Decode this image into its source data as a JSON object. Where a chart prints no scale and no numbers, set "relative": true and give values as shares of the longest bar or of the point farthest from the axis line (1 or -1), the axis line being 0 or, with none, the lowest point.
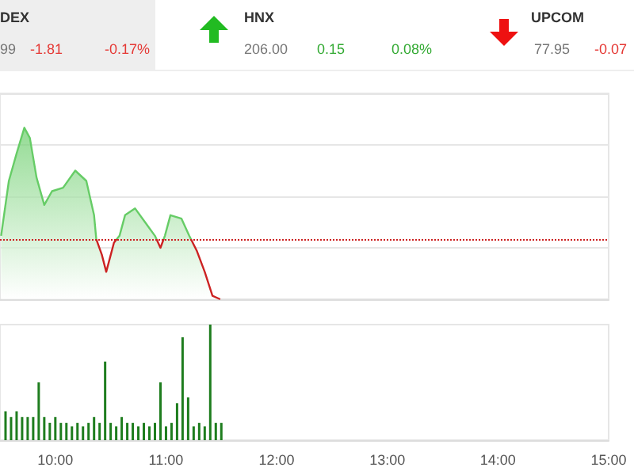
{
  "chart_data": [
    {
      "type": "other",
      "annotations": [
        "DEX",
        "99",
        "-1.81",
        "-0.17%",
        "HNX",
        "206.00",
        "0.15",
        "0.08%",
        "UPCOM",
        "77.95",
        "-0.07"
      ],
      "colors": [
        "#333333",
        "#777777",
        "#e53935",
        "#e53935",
        "#333333",
        "#777777",
        "#33aa33",
        "#33aa33",
        "#333333",
        "#777777",
        "#e53935"
      ]
    },
    {
      "type": "area",
      "relative": true,
      "xlim": [
        9.5,
        15
      ],
      "tick_labels": false,
      "grid": true,
      "x": [
        9.51,
        9.58,
        9.65,
        9.72,
        9.77,
        9.83,
        9.9,
        9.97,
        10.07,
        10.18,
        10.28,
        10.35,
        10.37,
        10.42,
        10.46,
        10.53,
        10.58,
        10.63,
        10.72,
        10.81,
        10.9,
        10.95,
        10.99,
        11.04,
        11.14,
        11.21,
        11.28,
        11.35,
        11.42,
        11.49
      ],
      "series": [
        {
          "color": "#66cc66",
          "values": [
            0.37,
            0.69,
            0.85,
            1,
            0.94,
            0.71,
            0.55,
            0.63,
            0.65,
            0.75,
            0.69,
            0.49,
            0.35,
            0.26,
            0.16,
            0.33,
            0.37,
            0.49,
            0.53,
            0.45,
            0.37,
            0.3,
            0.37,
            0.49,
            0.47,
            0.37,
            0.28,
            0.16,
            0.02,
            0
          ]
        }
      ],
      "ref_lines": [
        {
          "axis": "y",
          "value": 0.35,
          "color": "#cc2222",
          "line_style": "dotted"
        }
      ]
    },
    {
      "type": "bar",
      "relative": true,
      "xlim": [
        9.5,
        15
      ],
      "tick_labels": "x",
      "xticks": [
        {
          "value": 10,
          "label": "10:00"
        },
        {
          "value": 11,
          "label": "11:00"
        },
        {
          "value": 12,
          "label": "12:00"
        },
        {
          "value": 13,
          "label": "13:00"
        },
        {
          "value": 14,
          "label": "14:00"
        },
        {
          "value": 15,
          "label": "15:00"
        }
      ],
      "x": [
        9.55,
        9.6,
        9.65,
        9.7,
        9.75,
        9.8,
        9.85,
        9.9,
        9.95,
        10,
        10.05,
        10.1,
        10.15,
        10.2,
        10.25,
        10.3,
        10.35,
        10.4,
        10.45,
        10.5,
        10.55,
        10.6,
        10.65,
        10.7,
        10.75,
        10.8,
        10.85,
        10.9,
        10.95,
        11,
        11.05,
        11.1,
        11.15,
        11.2,
        11.25,
        11.3,
        11.35,
        11.4,
        11.45,
        11.5
      ],
      "series": [
        {
          "color": "#1e7d1e",
          "values": [
            0.25,
            0.2,
            0.25,
            0.2,
            0.2,
            0.2,
            0.5,
            0.2,
            0.15,
            0.2,
            0.15,
            0.15,
            0.12,
            0.15,
            0.12,
            0.15,
            0.2,
            0.15,
            0.68,
            0.15,
            0.12,
            0.2,
            0.15,
            0.15,
            0.12,
            0.15,
            0.12,
            0.15,
            0.5,
            0.12,
            0.15,
            0.32,
            0.89,
            0.37,
            0.12,
            0.15,
            0.12,
            1,
            0.15,
            0.15
          ]
        }
      ]
    }
  ]
}
